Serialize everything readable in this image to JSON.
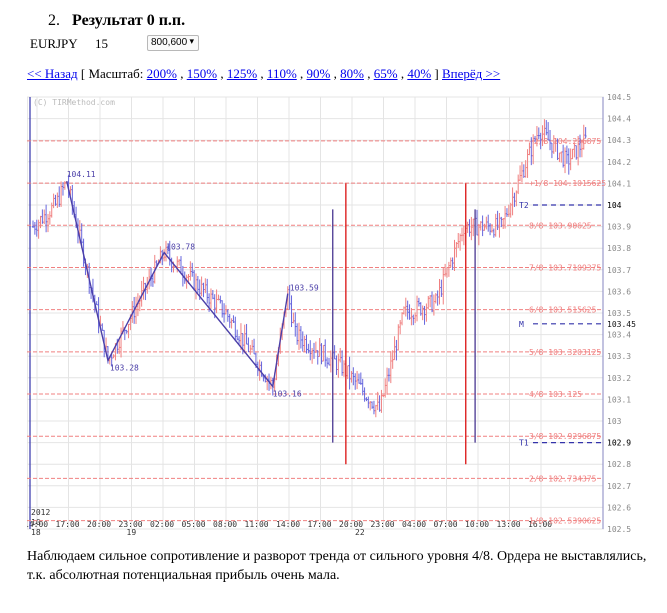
{
  "heading": {
    "number": "2.",
    "title": "Результат 0 п.п."
  },
  "controls": {
    "pair": "EURJPY",
    "period": "15",
    "size_value": "800,600"
  },
  "nav": {
    "back": "<< Назад",
    "bracket_open": "[",
    "scale_label": "Масштаб:",
    "scales": [
      "200%",
      "150%",
      "125%",
      "110%",
      "90%",
      "80%",
      "65%",
      "40%"
    ],
    "bracket_close": "]",
    "forward": "Вперёд >>"
  },
  "caption": "Наблюдаем сильное сопротивление и разворот тренда от сильного уровня 4/8. Ордера не выставлялись, т.к. абсолютная потенциальная прибыль очень мала.",
  "chart_data": {
    "type": "candlestick",
    "watermark": "(C) TIRMethod.com",
    "y_ticks": [
      "104.5",
      "104.4",
      "104.3",
      "104.2",
      "104.1",
      "104",
      "103.9",
      "103.8",
      "103.7",
      "103.6",
      "103.5",
      "103.4",
      "103.3",
      "103.2",
      "103.1",
      "103",
      "102.9",
      "102.8",
      "102.7",
      "102.6",
      "102.5"
    ],
    "ylim": [
      102.5,
      104.5
    ],
    "x_ticks": [
      "14:00",
      "17:00",
      "20:00",
      "23:00",
      "02:00",
      "05:00",
      "08:00",
      "11:00",
      "14:00",
      "17:00",
      "20:00",
      "23:00",
      "04:00",
      "07:00",
      "10:00",
      "13:00",
      "16:00"
    ],
    "date_labels": {
      "year": "2012",
      "month": "10",
      "start_day": "18",
      "day2": "19",
      "day3": "22"
    },
    "murray_levels": [
      {
        "label": "+2/8 104.296875",
        "value": 104.296875
      },
      {
        "label": "+1/8 104.1015625",
        "value": 104.1015625
      },
      {
        "label": "8/8 103.90625",
        "value": 103.90625
      },
      {
        "label": "7/8 103.7109375",
        "value": 103.7109375
      },
      {
        "label": "6/8 103.515625",
        "value": 103.515625
      },
      {
        "label": "5/8 103.3203125",
        "value": 103.3203125
      },
      {
        "label": "4/8 103.125",
        "value": 103.125
      },
      {
        "label": "3/8 102.9296875",
        "value": 102.9296875
      },
      {
        "label": "2/8 102.734375",
        "value": 102.734375
      },
      {
        "label": "1/8 102.5390625",
        "value": 102.5390625
      }
    ],
    "targets": [
      {
        "label": "T2",
        "value": 104.0,
        "price_label": "104"
      },
      {
        "label": "M",
        "value": 103.45,
        "price_label": "103.45"
      },
      {
        "label": "T1",
        "value": 102.9,
        "price_label": "102.9"
      }
    ],
    "zigzag": [
      {
        "label": "104.11",
        "value": 104.11
      },
      {
        "label": "103.28",
        "value": 103.28
      },
      {
        "label": "103.78",
        "value": 103.78
      },
      {
        "label": "103.16",
        "value": 103.16
      },
      {
        "label": "103.59",
        "value": 103.59
      }
    ],
    "colors": {
      "bull": "#f08080",
      "bear": "#6666dd",
      "murray": "#f08080",
      "target": "#3333aa",
      "zigzag": "#4b3fa8",
      "vline_red": "#dd2222",
      "vline_blue": "#554499",
      "grid": "#e4e4e4",
      "axis_text": "#888888"
    }
  }
}
